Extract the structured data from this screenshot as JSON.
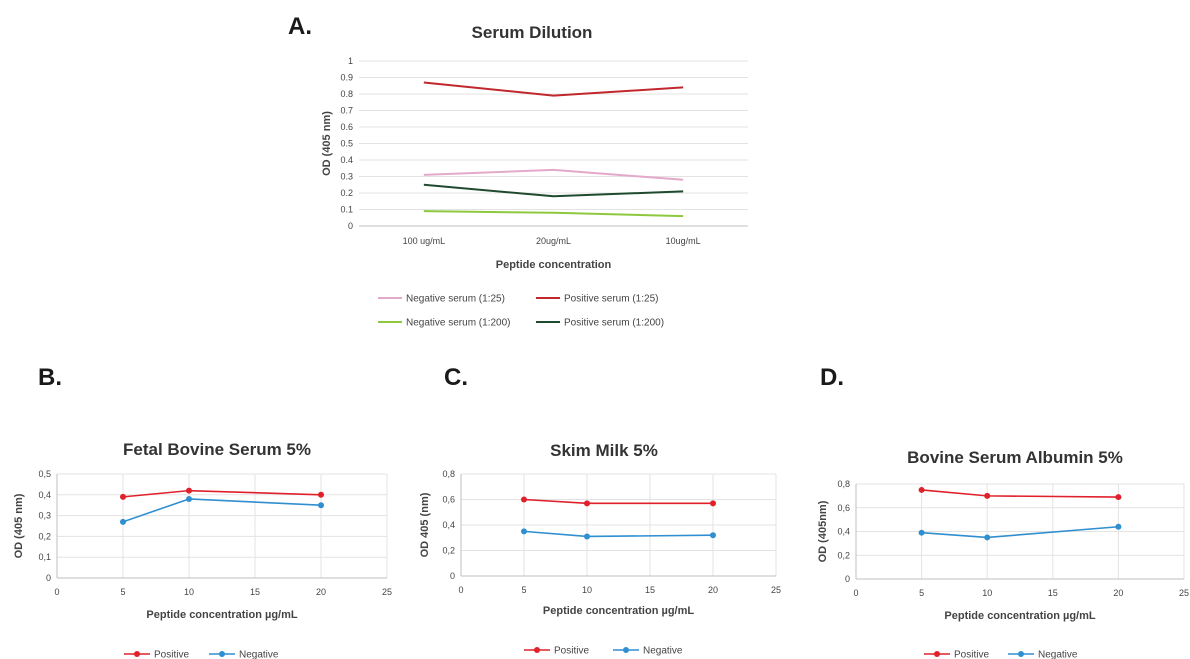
{
  "panels": [
    {
      "label": "A."
    },
    {
      "label": "B."
    },
    {
      "label": "C."
    },
    {
      "label": "D."
    }
  ],
  "chart_data": [
    {
      "id": "A",
      "type": "line",
      "title": "Serum Dilution",
      "xlabel": "Peptide concentration",
      "ylabel": "OD (405 nm)",
      "categories": [
        "100 ug/mL",
        "20ug/mL",
        "10ug/mL"
      ],
      "ylim": [
        0,
        1
      ],
      "yticks": [
        "0",
        "0.1",
        "0.2",
        "0.3",
        "0.4",
        "0.5",
        "0.6",
        "0.7",
        "0.8",
        "0.9",
        "1"
      ],
      "grid": true,
      "legend": "bottom",
      "series": [
        {
          "name": "Negative serum (1:25)",
          "color": "#e3a9c9",
          "values": [
            0.31,
            0.34,
            0.28
          ]
        },
        {
          "name": "Positive serum (1:25)",
          "color": "#c0282d",
          "values": [
            0.87,
            0.79,
            0.84
          ]
        },
        {
          "name": "Negative serum (1:200)",
          "color": "#8dc83f",
          "values": [
            0.09,
            0.08,
            0.06
          ]
        },
        {
          "name": "Positive serum (1:200)",
          "color": "#1f4a2f",
          "values": [
            0.25,
            0.18,
            0.21
          ]
        }
      ]
    },
    {
      "id": "B",
      "type": "line",
      "title": "Fetal Bovine Serum 5%",
      "xlabel": "Peptide concentration µg/mL",
      "ylabel": "OD (405 nm)",
      "xlim": [
        0,
        25
      ],
      "xticks": [
        "0",
        "5",
        "10",
        "15",
        "20",
        "25"
      ],
      "ylim": [
        0,
        0.5
      ],
      "yticks": [
        "0",
        "0,1",
        "0,2",
        "0,3",
        "0,4",
        "0,5"
      ],
      "grid": true,
      "legend": "bottom",
      "x": [
        5,
        10,
        20
      ],
      "series": [
        {
          "name": "Positive",
          "color": "#e0202a",
          "values": [
            0.39,
            0.42,
            0.4
          ]
        },
        {
          "name": "Negative",
          "color": "#2f8fd0",
          "values": [
            0.27,
            0.38,
            0.35
          ]
        }
      ]
    },
    {
      "id": "C",
      "type": "line",
      "title": "Skim Milk 5%",
      "xlabel": "Peptide concentration µg/mL",
      "ylabel": "OD 405 (nm)",
      "xlim": [
        0,
        25
      ],
      "xticks": [
        "0",
        "5",
        "10",
        "15",
        "20",
        "25"
      ],
      "ylim": [
        0,
        0.8
      ],
      "yticks": [
        "0",
        "0,2",
        "0,4",
        "0,6",
        "0,8"
      ],
      "grid": true,
      "legend": "bottom",
      "x": [
        5,
        10,
        20
      ],
      "series": [
        {
          "name": "Positive",
          "color": "#e0202a",
          "values": [
            0.6,
            0.57,
            0.57
          ]
        },
        {
          "name": "Negative",
          "color": "#2f8fd0",
          "values": [
            0.35,
            0.31,
            0.32
          ]
        }
      ]
    },
    {
      "id": "D",
      "type": "line",
      "title": "Bovine Serum Albumin 5%",
      "xlabel": "Peptide concentration µg/mL",
      "ylabel": "OD (405nm)",
      "xlim": [
        0,
        25
      ],
      "xticks": [
        "0",
        "5",
        "10",
        "15",
        "20",
        "25"
      ],
      "ylim": [
        0,
        0.8
      ],
      "yticks": [
        "0",
        "0,2",
        "0,4",
        "0,6",
        "0,8"
      ],
      "grid": true,
      "legend": "bottom",
      "x": [
        5,
        10,
        20
      ],
      "series": [
        {
          "name": "Positive",
          "color": "#e0202a",
          "values": [
            0.75,
            0.7,
            0.69
          ]
        },
        {
          "name": "Negative",
          "color": "#2f8fd0",
          "values": [
            0.39,
            0.35,
            0.44
          ]
        }
      ]
    }
  ]
}
